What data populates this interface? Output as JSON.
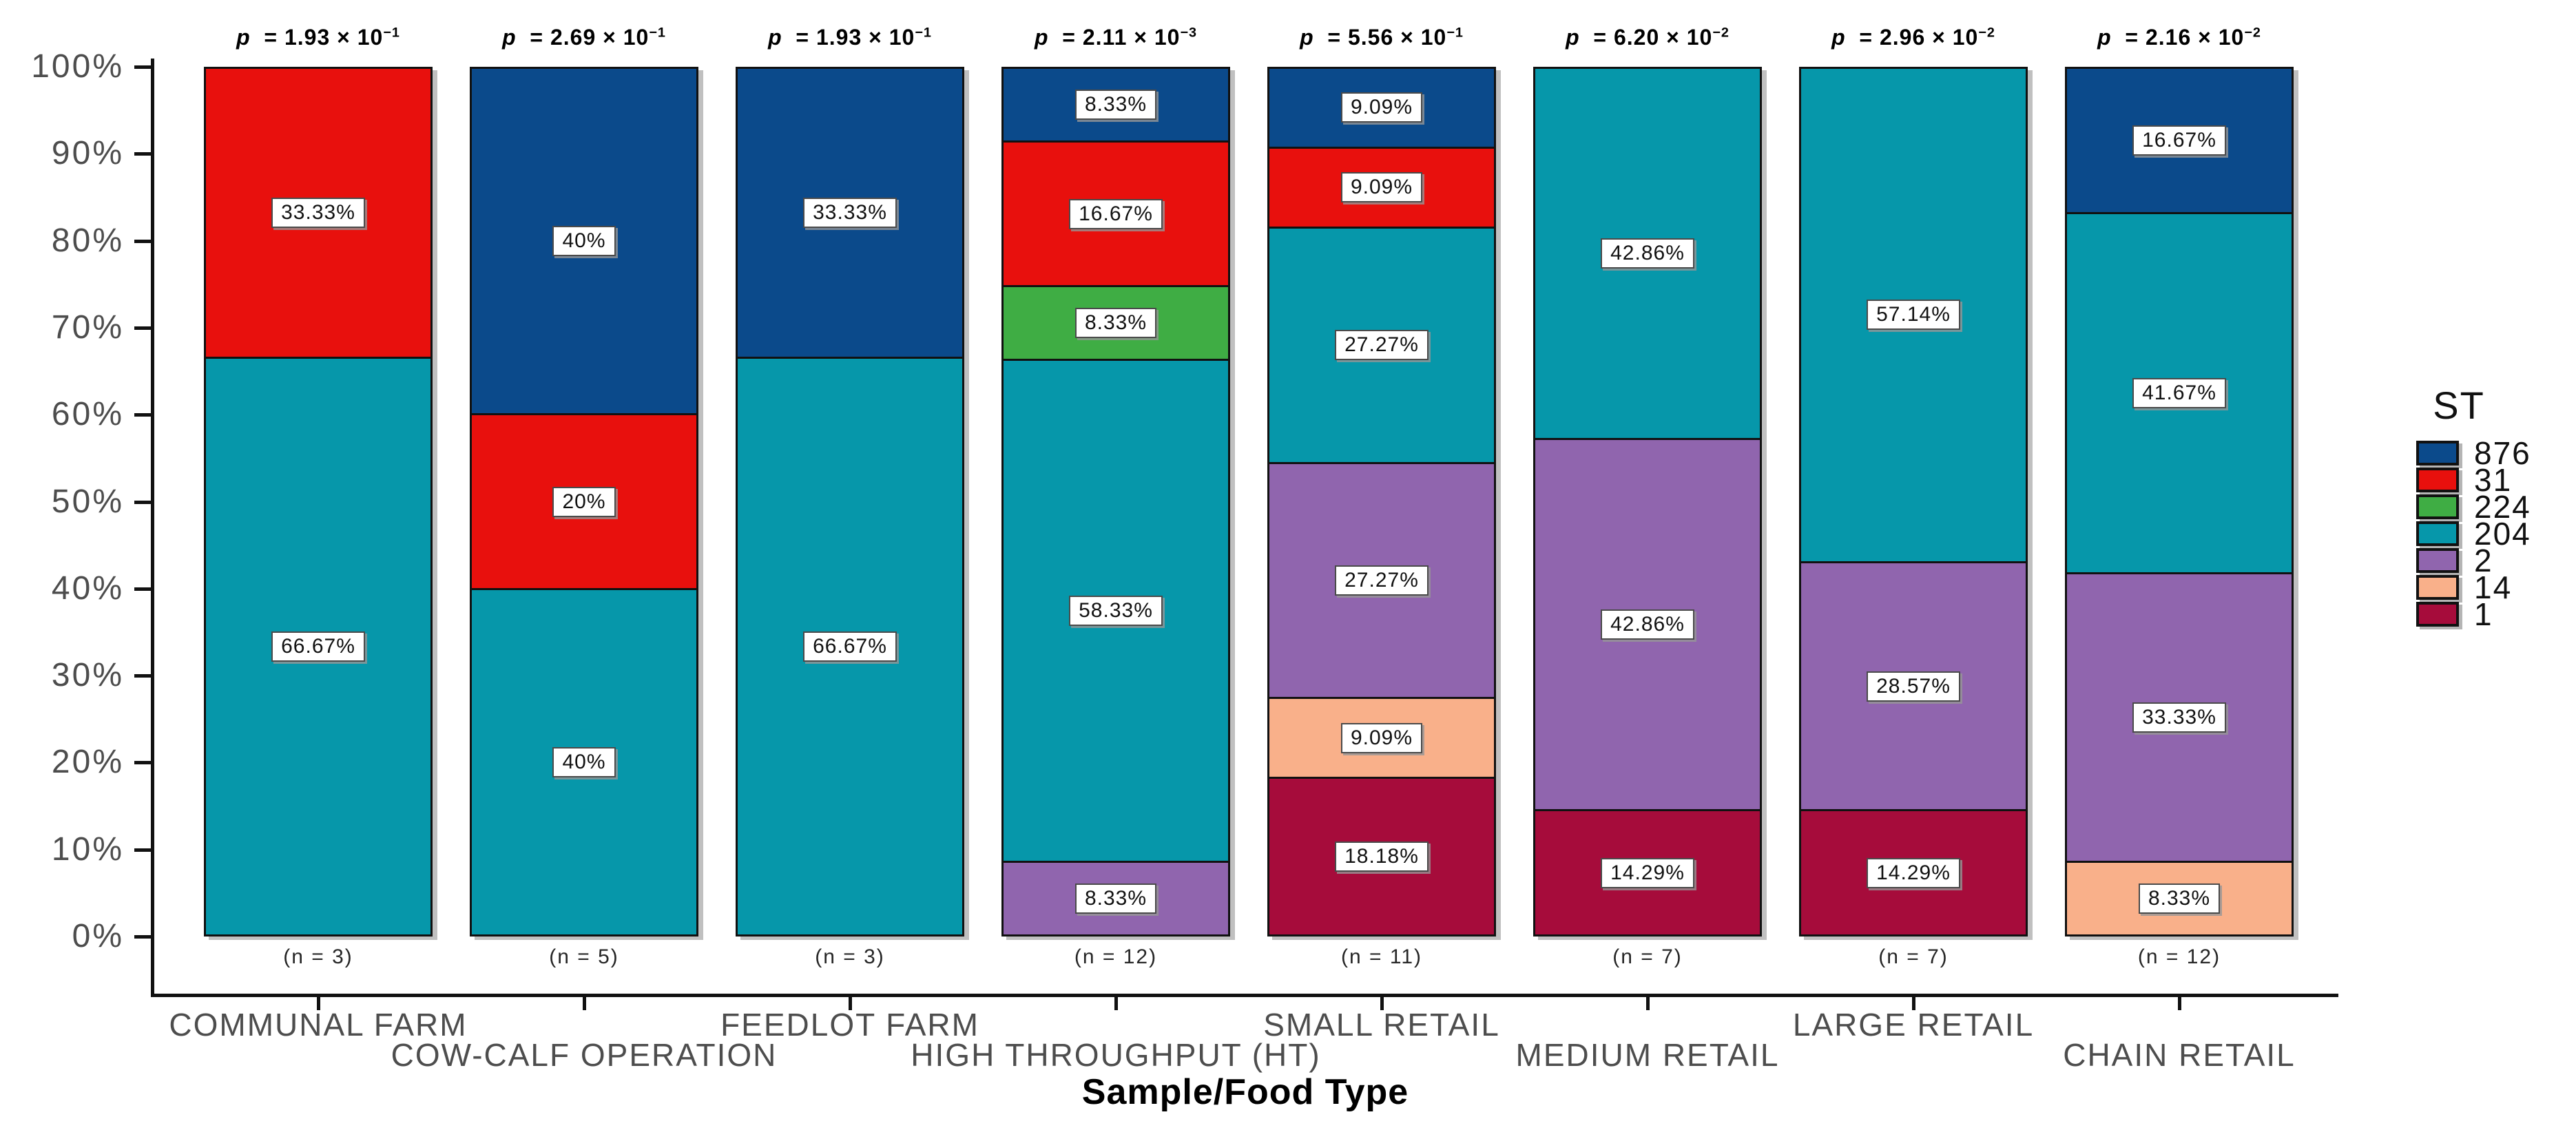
{
  "chart_data": {
    "type": "bar",
    "subtype": "100%-stacked-vertical",
    "title": "",
    "xlabel": "Sample/Food Type",
    "ylabel": "",
    "background": "#ffffff",
    "grid": "off",
    "ylim": [
      0,
      100
    ],
    "y_ticks_bottom_to_top": [
      "0%",
      "10%",
      "20%",
      "30%",
      "40%",
      "50%",
      "60%",
      "70%",
      "80%",
      "90%",
      "100%"
    ],
    "legend": {
      "title": "ST",
      "position": "right",
      "entries": [
        {
          "st": "876",
          "color": "#0b4a8b"
        },
        {
          "st": "31",
          "color": "#e8100d"
        },
        {
          "st": "224",
          "color": "#3fad44"
        },
        {
          "st": "204",
          "color": "#0697aa"
        },
        {
          "st": "2",
          "color": "#9065ae"
        },
        {
          "st": "14",
          "color": "#f9b08a"
        },
        {
          "st": "1",
          "color": "#a60c3b"
        }
      ]
    },
    "bars": [
      {
        "row": 1,
        "category": "COMMUNAL FARM",
        "n_label": "(n = 3)",
        "p_mantissa": "1.93",
        "p_exponent": "−1",
        "segments_top_to_bottom": [
          {
            "st": "31",
            "value": 33.33,
            "label": "33.33%"
          },
          {
            "st": "204",
            "value": 66.67,
            "label": "66.67%"
          }
        ]
      },
      {
        "row": 2,
        "category": "COW-CALF OPERATION",
        "n_label": "(n = 5)",
        "p_mantissa": "2.69",
        "p_exponent": "−1",
        "segments_top_to_bottom": [
          {
            "st": "876",
            "value": 40,
            "label": "40%"
          },
          {
            "st": "31",
            "value": 20,
            "label": "20%"
          },
          {
            "st": "204",
            "value": 40,
            "label": "40%"
          }
        ]
      },
      {
        "row": 1,
        "category": "FEEDLOT FARM",
        "n_label": "(n = 3)",
        "p_mantissa": "1.93",
        "p_exponent": "−1",
        "segments_top_to_bottom": [
          {
            "st": "876",
            "value": 33.33,
            "label": "33.33%"
          },
          {
            "st": "204",
            "value": 66.67,
            "label": "66.67%"
          }
        ]
      },
      {
        "row": 2,
        "category": "HIGH THROUGHPUT (HT)",
        "n_label": "(n = 12)",
        "p_mantissa": "2.11",
        "p_exponent": "−3",
        "segments_top_to_bottom": [
          {
            "st": "876",
            "value": 8.33,
            "label": "8.33%"
          },
          {
            "st": "31",
            "value": 16.67,
            "label": "16.67%"
          },
          {
            "st": "224",
            "value": 8.33,
            "label": "8.33%"
          },
          {
            "st": "204",
            "value": 58.33,
            "label": "58.33%"
          },
          {
            "st": "2",
            "value": 8.33,
            "label": "8.33%"
          }
        ]
      },
      {
        "row": 1,
        "category": "SMALL RETAIL",
        "n_label": "(n = 11)",
        "p_mantissa": "5.56",
        "p_exponent": "−1",
        "segments_top_to_bottom": [
          {
            "st": "876",
            "value": 9.09,
            "label": "9.09%"
          },
          {
            "st": "31",
            "value": 9.09,
            "label": "9.09%"
          },
          {
            "st": "204",
            "value": 27.27,
            "label": "27.27%"
          },
          {
            "st": "2",
            "value": 27.27,
            "label": "27.27%"
          },
          {
            "st": "14",
            "value": 9.09,
            "label": "9.09%"
          },
          {
            "st": "1",
            "value": 18.18,
            "label": "18.18%"
          }
        ]
      },
      {
        "row": 2,
        "category": "MEDIUM RETAIL",
        "n_label": "(n = 7)",
        "p_mantissa": "6.20",
        "p_exponent": "−2",
        "segments_top_to_bottom": [
          {
            "st": "204",
            "value": 42.86,
            "label": "42.86%"
          },
          {
            "st": "2",
            "value": 42.86,
            "label": "42.86%"
          },
          {
            "st": "1",
            "value": 14.29,
            "label": "14.29%"
          }
        ]
      },
      {
        "row": 1,
        "category": "LARGE RETAIL",
        "n_label": "(n = 7)",
        "p_mantissa": "2.96",
        "p_exponent": "−2",
        "segments_top_to_bottom": [
          {
            "st": "204",
            "value": 57.14,
            "label": "57.14%"
          },
          {
            "st": "2",
            "value": 28.57,
            "label": "28.57%"
          },
          {
            "st": "1",
            "value": 14.29,
            "label": "14.29%"
          }
        ]
      },
      {
        "row": 2,
        "category": "CHAIN RETAIL",
        "n_label": "(n = 12)",
        "p_mantissa": "2.16",
        "p_exponent": "−2",
        "segments_top_to_bottom": [
          {
            "st": "876",
            "value": 16.67,
            "label": "16.67%"
          },
          {
            "st": "204",
            "value": 41.67,
            "label": "41.67%"
          },
          {
            "st": "2",
            "value": 33.33,
            "label": "33.33%"
          },
          {
            "st": "14",
            "value": 8.33,
            "label": "8.33%"
          }
        ]
      }
    ]
  }
}
